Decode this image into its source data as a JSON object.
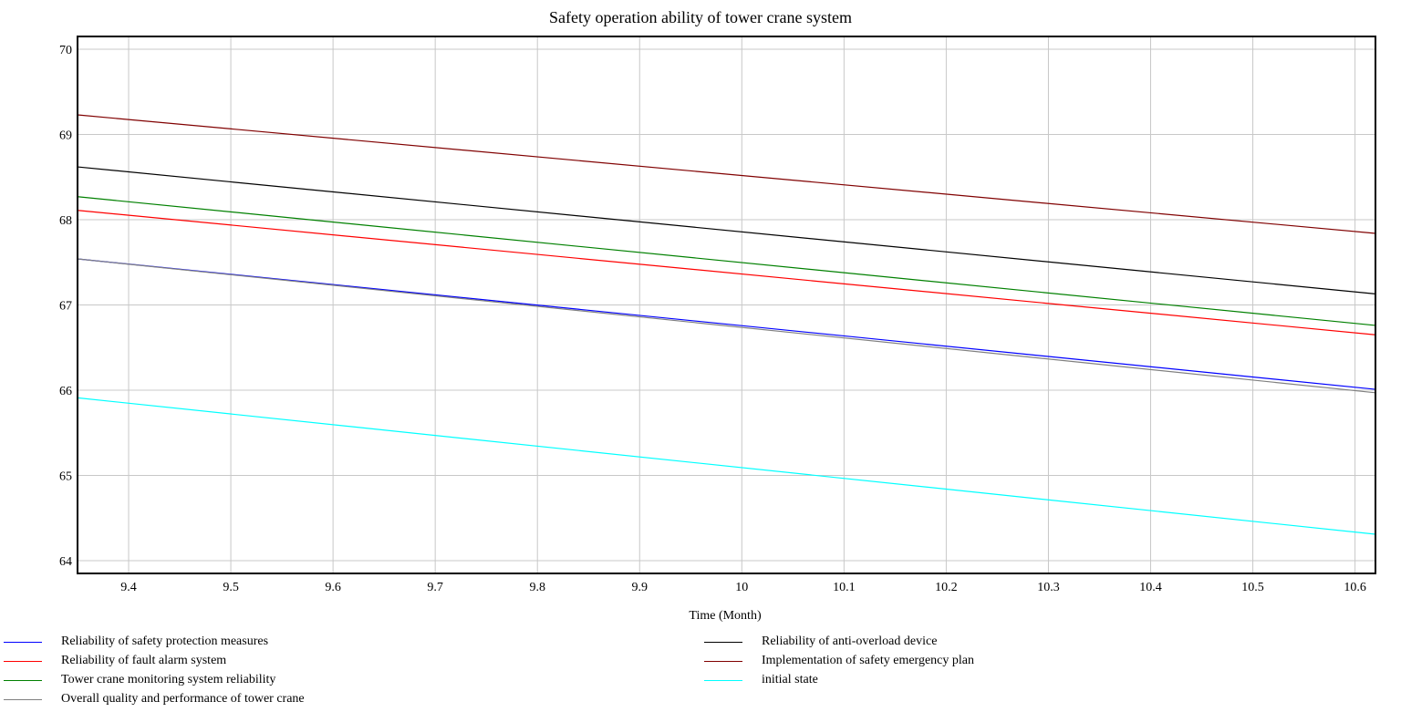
{
  "chart_data": {
    "type": "line",
    "title": "Safety operation ability of tower crane system",
    "xlabel": "Time (Month)",
    "ylabel": "",
    "xlim": [
      9.35,
      10.62
    ],
    "ylim": [
      63.85,
      70.15
    ],
    "xticks": [
      "9.4",
      "9.5",
      "9.6",
      "9.7",
      "9.8",
      "9.9",
      "10",
      "10.1",
      "10.2",
      "10.3",
      "10.4",
      "10.5",
      "10.6"
    ],
    "yticks": [
      "64",
      "65",
      "66",
      "67",
      "68",
      "69",
      "70"
    ],
    "grid": true,
    "legend_position": "bottom",
    "x": [
      9.35,
      10.62
    ],
    "series": [
      {
        "name": "Reliability of safety protection measures",
        "color": "#0000ff",
        "values": [
          67.54,
          66.01
        ]
      },
      {
        "name": "Reliability of anti-overload device",
        "color": "#000000",
        "values": [
          68.62,
          67.13
        ]
      },
      {
        "name": "Reliability of fault alarm system",
        "color": "#ff0000",
        "values": [
          68.11,
          66.65
        ]
      },
      {
        "name": "Implementation of safety emergency plan",
        "color": "#800000",
        "values": [
          69.23,
          67.84
        ]
      },
      {
        "name": "Tower crane monitoring system reliability",
        "color": "#008000",
        "values": [
          68.27,
          66.76
        ]
      },
      {
        "name": "initial state",
        "color": "#00ffff",
        "values": [
          65.91,
          64.31
        ]
      },
      {
        "name": "Overall quality and performance of tower crane",
        "color": "#808080",
        "values": [
          67.54,
          65.97
        ]
      }
    ]
  }
}
